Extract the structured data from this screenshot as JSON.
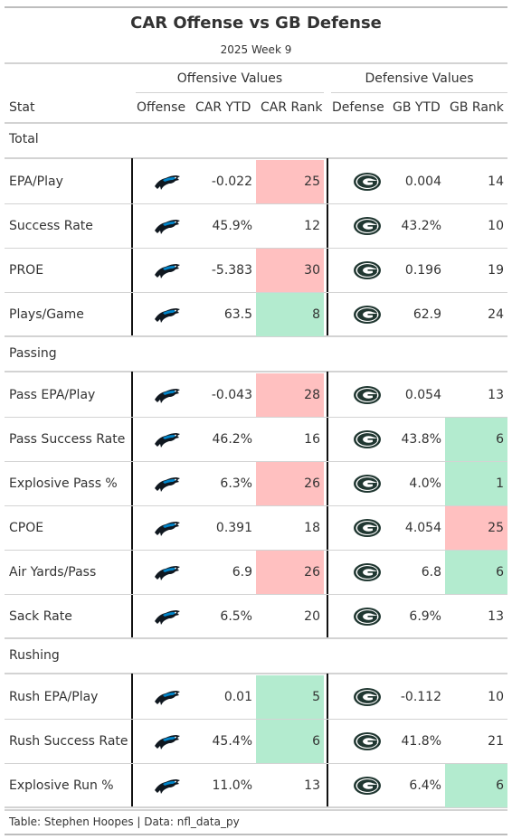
{
  "title": "CAR Offense vs GB Defense",
  "subtitle": "2025 Week 9",
  "spanners": {
    "offense": "Offensive Values",
    "defense": "Defensive Values"
  },
  "columns": {
    "stat": "Stat",
    "offense": "Offense",
    "car_ytd": "CAR YTD",
    "car_rank": "CAR Rank",
    "defense": "Defense",
    "gb_ytd": "GB YTD",
    "gb_rank": "GB Rank"
  },
  "colors": {
    "bad_rank": "#FFC0C0",
    "good_rank": "#B3EBCF",
    "panthers_blue": "#0085CA",
    "panthers_black": "#101820",
    "packers_green": "#203731",
    "packers_gold": "#FFB612"
  },
  "icons": {
    "offense": "carolina-panthers-logo-icon",
    "defense": "green-bay-packers-logo-icon"
  },
  "groups": [
    {
      "label": "Total",
      "rows": [
        {
          "stat": "EPA/Play",
          "car_ytd": "-0.022",
          "car_rank": "25",
          "car_rank_tone": "bad",
          "gb_ytd": "0.004",
          "gb_rank": "14",
          "gb_rank_tone": "none"
        },
        {
          "stat": "Success Rate",
          "car_ytd": "45.9%",
          "car_rank": "12",
          "car_rank_tone": "none",
          "gb_ytd": "43.2%",
          "gb_rank": "10",
          "gb_rank_tone": "none"
        },
        {
          "stat": "PROE",
          "car_ytd": "-5.383",
          "car_rank": "30",
          "car_rank_tone": "bad",
          "gb_ytd": "0.196",
          "gb_rank": "19",
          "gb_rank_tone": "none"
        },
        {
          "stat": "Plays/Game",
          "car_ytd": "63.5",
          "car_rank": "8",
          "car_rank_tone": "good",
          "gb_ytd": "62.9",
          "gb_rank": "24",
          "gb_rank_tone": "none"
        }
      ]
    },
    {
      "label": "Passing",
      "rows": [
        {
          "stat": "Pass EPA/Play",
          "car_ytd": "-0.043",
          "car_rank": "28",
          "car_rank_tone": "bad",
          "gb_ytd": "0.054",
          "gb_rank": "13",
          "gb_rank_tone": "none"
        },
        {
          "stat": "Pass Success Rate",
          "car_ytd": "46.2%",
          "car_rank": "16",
          "car_rank_tone": "none",
          "gb_ytd": "43.8%",
          "gb_rank": "6",
          "gb_rank_tone": "good"
        },
        {
          "stat": "Explosive Pass %",
          "car_ytd": "6.3%",
          "car_rank": "26",
          "car_rank_tone": "bad",
          "gb_ytd": "4.0%",
          "gb_rank": "1",
          "gb_rank_tone": "good"
        },
        {
          "stat": "CPOE",
          "car_ytd": "0.391",
          "car_rank": "18",
          "car_rank_tone": "none",
          "gb_ytd": "4.054",
          "gb_rank": "25",
          "gb_rank_tone": "bad"
        },
        {
          "stat": "Air Yards/Pass",
          "car_ytd": "6.9",
          "car_rank": "26",
          "car_rank_tone": "bad",
          "gb_ytd": "6.8",
          "gb_rank": "6",
          "gb_rank_tone": "good"
        },
        {
          "stat": "Sack Rate",
          "car_ytd": "6.5%",
          "car_rank": "20",
          "car_rank_tone": "none",
          "gb_ytd": "6.9%",
          "gb_rank": "13",
          "gb_rank_tone": "none"
        }
      ]
    },
    {
      "label": "Rushing",
      "rows": [
        {
          "stat": "Rush EPA/Play",
          "car_ytd": "0.01",
          "car_rank": "5",
          "car_rank_tone": "good",
          "gb_ytd": "-0.112",
          "gb_rank": "10",
          "gb_rank_tone": "none"
        },
        {
          "stat": "Rush Success Rate",
          "car_ytd": "45.4%",
          "car_rank": "6",
          "car_rank_tone": "good",
          "gb_ytd": "41.8%",
          "gb_rank": "21",
          "gb_rank_tone": "none"
        },
        {
          "stat": "Explosive Run %",
          "car_ytd": "11.0%",
          "car_rank": "13",
          "car_rank_tone": "none",
          "gb_ytd": "6.4%",
          "gb_rank": "6",
          "gb_rank_tone": "good"
        }
      ]
    }
  ],
  "source": "Table: Stephen Hoopes | Data: nfl_data_py"
}
